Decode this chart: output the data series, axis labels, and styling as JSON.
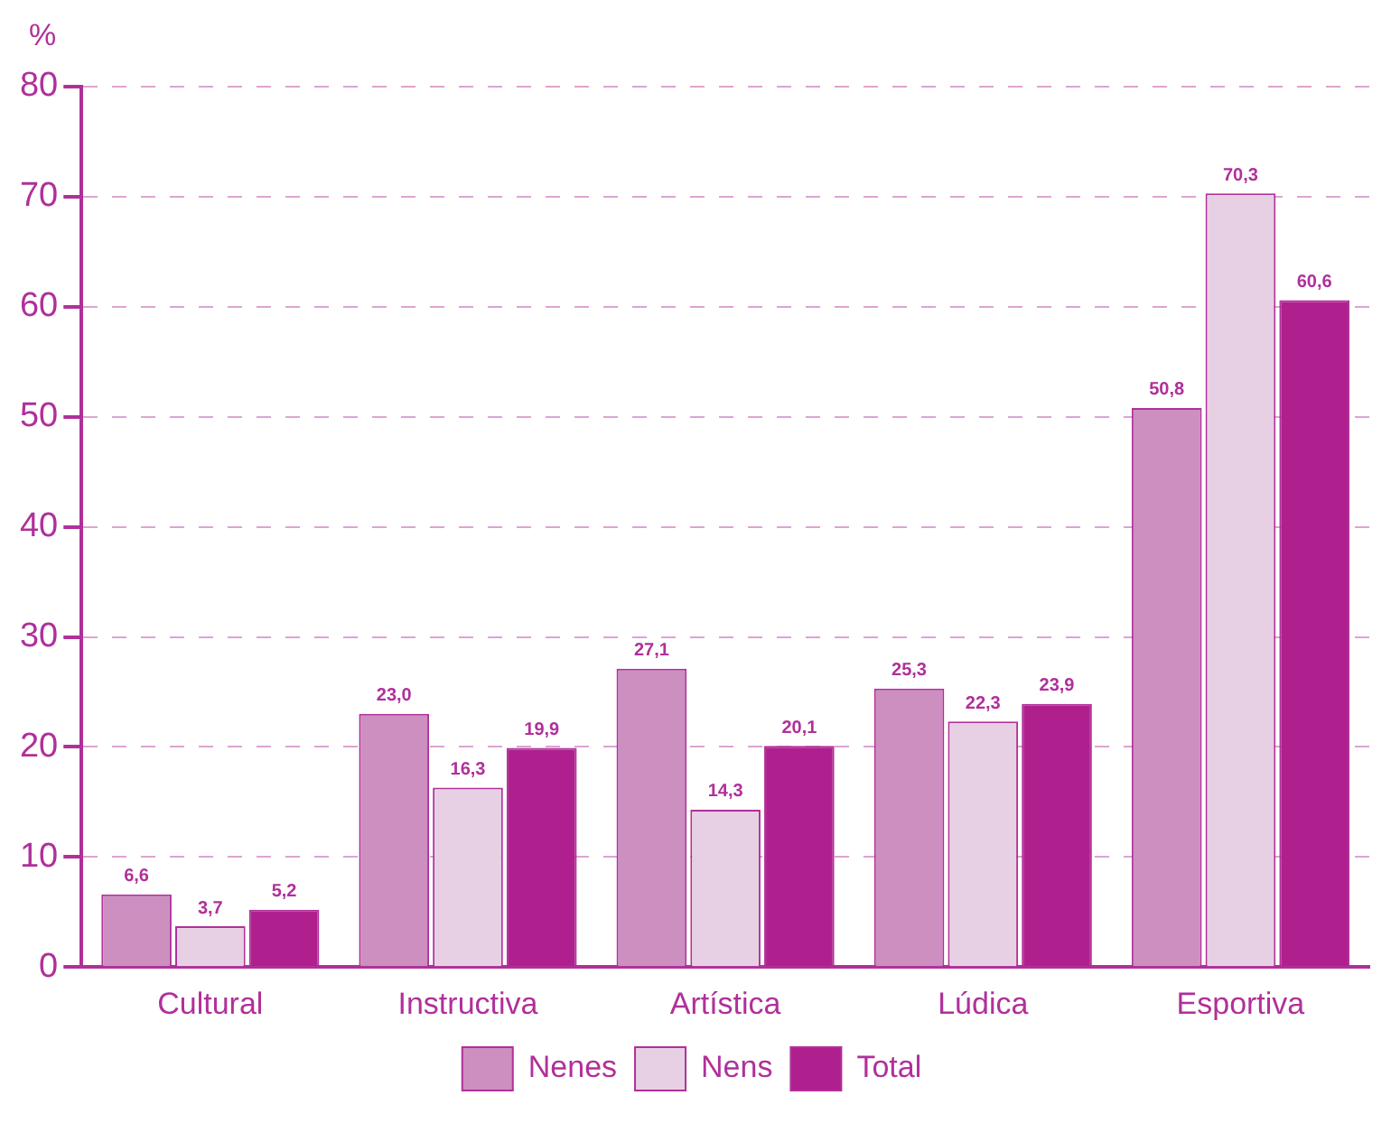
{
  "chart_data": {
    "type": "bar",
    "ylabel": "%",
    "categories": [
      "Cultural",
      "Instructiva",
      "Artística",
      "Lúdica",
      "Esportiva"
    ],
    "series": [
      {
        "name": "Nenes",
        "color": "#cc8fc0",
        "values": [
          6.6,
          23.0,
          27.1,
          25.3,
          50.8
        ],
        "value_labels": [
          "6,6",
          "23,0",
          "27,1",
          "25,3",
          "50,8"
        ]
      },
      {
        "name": "Nens",
        "color": "#e8d0e4",
        "values": [
          3.7,
          16.3,
          14.3,
          22.3,
          70.3
        ],
        "value_labels": [
          "3,7",
          "16,3",
          "14,3",
          "22,3",
          "70,3"
        ]
      },
      {
        "name": "Total",
        "color": "#b01f8e",
        "values": [
          5.2,
          19.9,
          20.1,
          23.9,
          60.6
        ],
        "value_labels": [
          "5,2",
          "19,9",
          "20,1",
          "23,9",
          "60,6"
        ]
      }
    ],
    "ylim": [
      0,
      80
    ],
    "yticks": [
      0,
      10,
      20,
      30,
      40,
      50,
      60,
      70,
      80
    ],
    "grid": "y",
    "legend": "bottom"
  }
}
